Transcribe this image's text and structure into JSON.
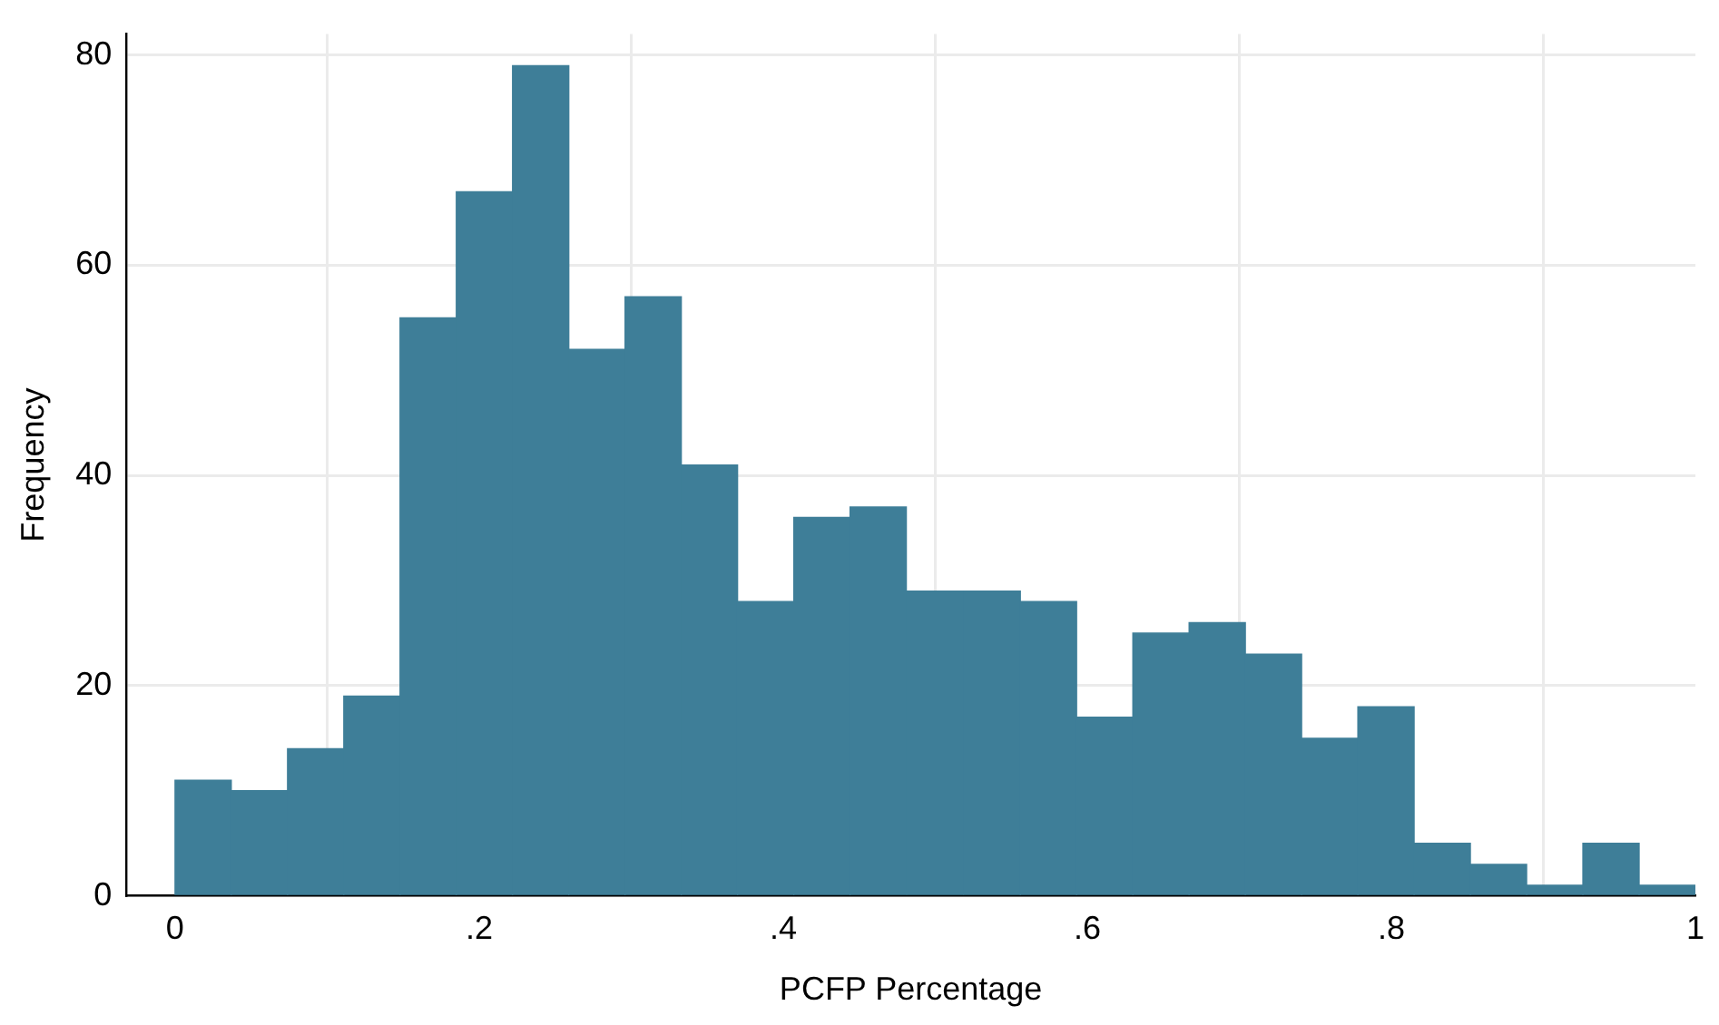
{
  "chart_data": {
    "type": "histogram",
    "xlabel": "PCFP Percentage",
    "ylabel": "Frequency",
    "bins": [
      0,
      0.037,
      0.074,
      0.111,
      0.148,
      0.185,
      0.222,
      0.259,
      0.296,
      0.333,
      0.37,
      0.407,
      0.444,
      0.481,
      0.519,
      0.556,
      0.593,
      0.63,
      0.667,
      0.704,
      0.741,
      0.778,
      0.815,
      0.852,
      0.889,
      0.926,
      0.963,
      1
    ],
    "values": [
      11,
      10,
      14,
      19,
      55,
      67,
      79,
      52,
      57,
      41,
      28,
      36,
      37,
      29,
      29,
      28,
      17,
      25,
      26,
      23,
      15,
      18,
      5,
      3,
      1,
      5,
      1
    ],
    "color": "#3e7e98",
    "xlim": [
      -0.032,
      1
    ],
    "ylim": [
      0,
      82
    ],
    "xticks": [
      0,
      {
        "value": 0.2,
        "label": ".2"
      },
      {
        "value": 0.4,
        "label": ".4"
      },
      {
        "value": 0.6,
        "label": ".6"
      },
      {
        "value": 0.8,
        "label": ".8"
      },
      1
    ],
    "yticks": [
      0,
      20,
      40,
      60,
      80
    ],
    "grid": true,
    "legend": false
  }
}
